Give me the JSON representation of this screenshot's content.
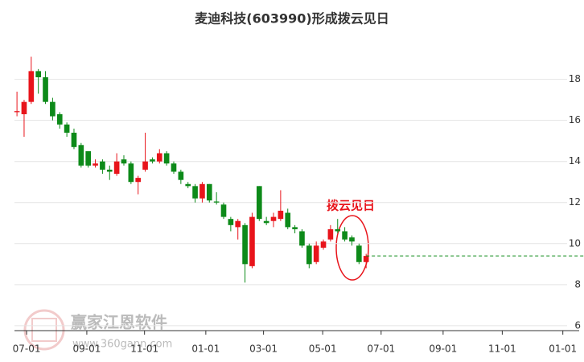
{
  "chart_data": {
    "type": "candlestick",
    "title": "麦迪科技(603990)形成拨云见日",
    "annotation": "拨云见日",
    "watermark": "赢家江恩软件",
    "watermark_url": "www.360gann.com",
    "up_color": "#e8141b",
    "down_color": "#0d8a19",
    "categories": [
      null,
      null,
      null,
      null,
      null,
      null,
      null,
      null,
      null,
      null,
      null,
      null,
      null,
      null,
      null,
      null,
      null,
      null,
      null,
      null,
      null,
      null,
      null,
      null,
      null,
      null,
      null,
      null,
      null,
      null,
      null,
      null,
      null,
      null,
      null,
      null,
      null,
      null,
      null,
      null,
      null,
      null,
      null,
      null,
      null,
      null,
      null,
      null,
      null,
      null
    ],
    "open": [
      16.4,
      16.3,
      16.9,
      18.4,
      18.1,
      16.9,
      16.3,
      15.8,
      15.4,
      14.8,
      14.5,
      13.8,
      14.0,
      13.6,
      13.4,
      14.1,
      13.9,
      13.0,
      13.6,
      14.1,
      14.0,
      14.4,
      13.9,
      13.5,
      12.9,
      12.8,
      12.2,
      12.9,
      12.05,
      11.9,
      11.2,
      10.8,
      10.9,
      8.9,
      12.8,
      11.1,
      11.1,
      11.2,
      11.5,
      10.8,
      10.6,
      9.9,
      9.1,
      9.8,
      10.2,
      10.7,
      10.6,
      10.3,
      9.9,
      9.1
    ],
    "high": [
      17.4,
      17.0,
      19.1,
      18.5,
      18.4,
      17.1,
      16.4,
      15.9,
      15.6,
      14.9,
      14.5,
      14.1,
      14.1,
      13.8,
      14.4,
      14.3,
      14.0,
      13.3,
      15.4,
      14.2,
      14.6,
      14.5,
      14.0,
      13.6,
      13.0,
      12.9,
      13.0,
      12.9,
      12.5,
      12.0,
      11.3,
      11.2,
      11.0,
      11.5,
      12.8,
      11.3,
      11.5,
      12.6,
      11.7,
      10.9,
      10.7,
      10.0,
      10.1,
      10.2,
      10.9,
      11.2,
      10.8,
      10.4,
      10.0,
      9.5
    ],
    "low": [
      16.2,
      15.2,
      16.8,
      17.3,
      16.8,
      16.0,
      15.6,
      15.2,
      14.6,
      13.7,
      13.7,
      13.7,
      13.4,
      13.1,
      13.3,
      13.8,
      12.9,
      12.4,
      13.5,
      13.9,
      13.9,
      13.8,
      13.4,
      12.9,
      12.7,
      12.0,
      12.0,
      12.0,
      11.9,
      11.2,
      10.6,
      10.2,
      8.1,
      8.8,
      11.1,
      10.9,
      10.8,
      11.1,
      10.7,
      10.5,
      9.8,
      8.8,
      9.0,
      9.7,
      10.1,
      10.5,
      10.1,
      9.9,
      9.0,
      8.8
    ],
    "close": [
      16.45,
      16.9,
      18.4,
      18.1,
      16.9,
      16.2,
      15.8,
      15.4,
      14.7,
      13.8,
      13.8,
      13.9,
      13.6,
      13.5,
      14.0,
      13.9,
      13.0,
      13.2,
      14.0,
      14.0,
      14.4,
      13.9,
      13.5,
      13.1,
      12.8,
      12.2,
      12.9,
      12.1,
      12.0,
      11.3,
      10.9,
      11.1,
      9.0,
      11.3,
      11.2,
      11.0,
      11.3,
      11.6,
      10.8,
      10.7,
      9.9,
      9.0,
      9.9,
      10.1,
      10.7,
      10.6,
      10.2,
      10.1,
      9.1,
      9.4
    ],
    "xlim": [
      -0.35,
      77.2
    ],
    "xticks": [
      {
        "value": 1.35,
        "label": "07-01"
      },
      {
        "value": 9.8,
        "label": "09-01"
      },
      {
        "value": 17.9,
        "label": "11-01"
      },
      {
        "value": 26.5,
        "label": "01-01"
      },
      {
        "value": 34.6,
        "label": "03-01"
      },
      {
        "value": 42.9,
        "label": "05-01"
      },
      {
        "value": 51.1,
        "label": "07-01"
      },
      {
        "value": 59.8,
        "label": "09-01"
      },
      {
        "value": 68.1,
        "label": "11-01"
      },
      {
        "value": 76.6,
        "label": "01-01"
      }
    ],
    "ylim": [
      5.8,
      20.1
    ],
    "yticks": [
      6,
      8,
      10,
      12,
      14,
      16,
      18
    ],
    "grid": true
  }
}
